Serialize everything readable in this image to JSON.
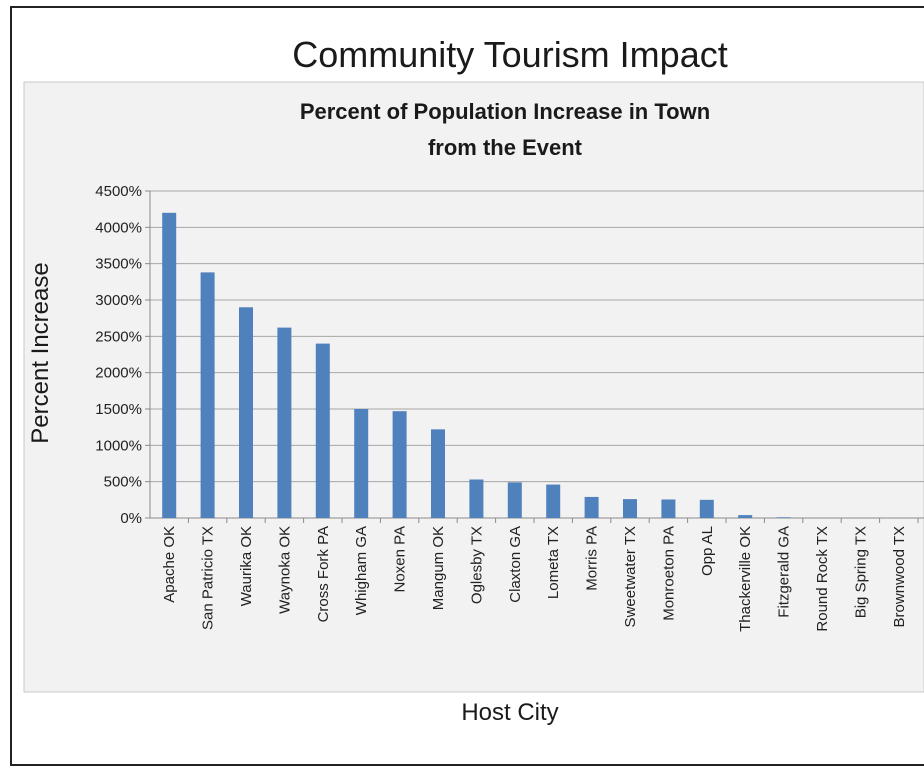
{
  "page": {
    "title": "Community Tourism Impact"
  },
  "chart_data": {
    "type": "bar",
    "title": "Percent of Population Increase in Town from the Event",
    "title_lines": [
      "Percent of Population Increase in Town",
      "from the Event"
    ],
    "xlabel": "Host City",
    "ylabel": "Percent Increase",
    "ylim": [
      0,
      4500
    ],
    "yticks": [
      0,
      500,
      1000,
      1500,
      2000,
      2500,
      3000,
      3500,
      4000,
      4500
    ],
    "ytick_labels": [
      "0%",
      "500%",
      "1000%",
      "1500%",
      "2000%",
      "2500%",
      "3000%",
      "3500%",
      "4000%",
      "4500%"
    ],
    "grid": true,
    "legend": "none",
    "bar_color": "#4f81bd",
    "plot_background": "#f2f2f2",
    "categories": [
      "Apache OK",
      "San Patricio TX",
      "Waurika OK",
      "Waynoka OK",
      "Cross Fork PA",
      "Whigham GA",
      "Noxen PA",
      "Mangum OK",
      "Oglesby TX",
      "Claxton GA",
      "Lometa TX",
      "Morris PA",
      "Sweetwater TX",
      "Monroeton PA",
      "Opp AL",
      "Thackerville OK",
      "Fitzgerald GA",
      "Round Rock TX",
      "Big Spring TX",
      "Brownwood TX"
    ],
    "values": [
      4200,
      3380,
      2900,
      2620,
      2400,
      1500,
      1470,
      1220,
      530,
      490,
      460,
      290,
      260,
      255,
      250,
      40,
      10,
      0,
      0,
      0
    ]
  }
}
